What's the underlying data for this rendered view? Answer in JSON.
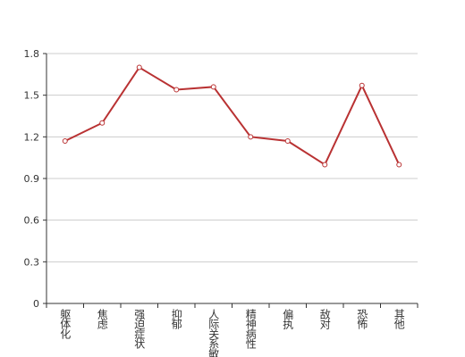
{
  "chart_data": {
    "type": "line",
    "categories": [
      "躯体化",
      "焦虑",
      "强迫症状",
      "抑郁",
      "人际关系敏感",
      "精神病性",
      "偏执",
      "敌对",
      "恐怖",
      "其他"
    ],
    "series": [
      {
        "name": null,
        "color": "#b93233",
        "values": [
          1.17,
          1.3,
          1.7,
          1.54,
          1.56,
          1.2,
          1.17,
          1.0,
          1.57,
          1.0
        ]
      }
    ],
    "ylim": [
      0,
      1.8
    ],
    "yticks": [
      0,
      0.3,
      0.6,
      0.9,
      1.2,
      1.5,
      1.8
    ],
    "grid": true
  }
}
